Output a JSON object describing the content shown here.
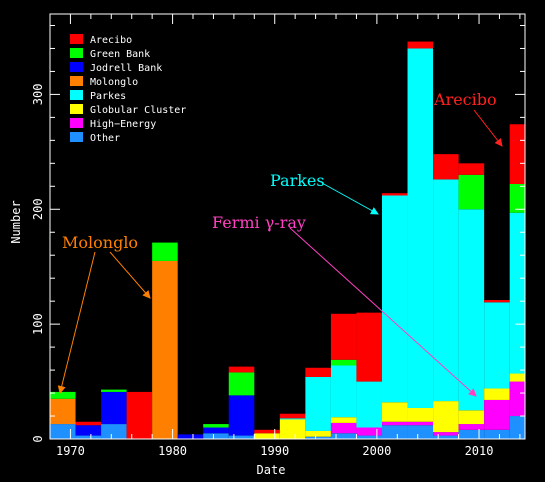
{
  "chart_data": {
    "type": "bar",
    "stacked": true,
    "xlabel": "Date",
    "ylabel": "Number",
    "xlim": [
      1968,
      2014.5
    ],
    "ylim": [
      0,
      370
    ],
    "bin_width": 2.5,
    "bin_starts": [
      1968,
      1970.5,
      1973,
      1975.5,
      1978,
      1980.5,
      1983,
      1985.5,
      1988,
      1990.5,
      1993,
      1995.5,
      1998,
      2000.5,
      2003,
      2005.5,
      2008,
      2010.5,
      2013
    ],
    "x_ticks": [
      {
        "value": 1970,
        "label": "1970"
      },
      {
        "value": 1980,
        "label": "1980"
      },
      {
        "value": 1990,
        "label": "1990"
      },
      {
        "value": 2000,
        "label": "2000"
      },
      {
        "value": 2010,
        "label": "2010"
      }
    ],
    "y_ticks": [
      {
        "value": 0,
        "label": "0"
      },
      {
        "value": 100,
        "label": "100"
      },
      {
        "value": 200,
        "label": "200"
      },
      {
        "value": 300,
        "label": "300"
      }
    ],
    "series": [
      {
        "name": "Other",
        "color": "#1e90ff",
        "values": [
          13,
          3,
          13,
          0,
          0,
          0,
          5,
          3,
          0,
          0,
          2,
          5,
          3,
          12,
          12,
          3,
          8,
          8,
          20
        ]
      },
      {
        "name": "High−Energy",
        "color": "#ff00ff",
        "values": [
          0,
          0,
          0,
          0,
          0,
          0,
          0,
          0,
          0,
          0,
          0,
          9,
          7,
          3,
          3,
          3,
          5,
          26,
          30
        ]
      },
      {
        "name": "Globular Cluster",
        "color": "#ffff00",
        "values": [
          0,
          0,
          0,
          0,
          0,
          0,
          0,
          0,
          5,
          17,
          5,
          5,
          0,
          17,
          12,
          27,
          12,
          10,
          7
        ]
      },
      {
        "name": "Parkes",
        "color": "#00ffff",
        "values": [
          0,
          0,
          0,
          0,
          0,
          0,
          0,
          0,
          0,
          1,
          47,
          45,
          40,
          180,
          313,
          193,
          175,
          75,
          140
        ]
      },
      {
        "name": "Molonglo",
        "color": "#ff8000",
        "values": [
          22,
          0,
          0,
          0,
          155,
          0,
          0,
          0,
          0,
          0,
          0,
          0,
          0,
          0,
          0,
          0,
          0,
          0,
          0
        ]
      },
      {
        "name": "Jodrell Bank",
        "color": "#0000ff",
        "values": [
          0,
          9,
          28,
          0,
          0,
          4,
          5,
          35,
          0,
          0,
          0,
          0,
          0,
          0,
          0,
          0,
          0,
          0,
          0
        ]
      },
      {
        "name": "Green Bank",
        "color": "#00ff00",
        "values": [
          6,
          0,
          2,
          0,
          16,
          0,
          3,
          20,
          0,
          0,
          0,
          5,
          0,
          0,
          0,
          0,
          30,
          0,
          25
        ]
      },
      {
        "name": "Arecibo",
        "color": "#ff0000",
        "values": [
          0,
          3,
          0,
          41,
          0,
          0,
          0,
          5,
          3,
          4,
          8,
          40,
          60,
          2,
          6,
          22,
          10,
          2,
          52
        ]
      }
    ],
    "legend_order": [
      "Arecibo",
      "Green Bank",
      "Jodrell Bank",
      "Molonglo",
      "Parkes",
      "Globular Cluster",
      "High−Energy",
      "Other"
    ],
    "legend_position": "top-left",
    "annotations": [
      {
        "text": "Molonglo",
        "color": "#ff8000"
      },
      {
        "text": "Parkes",
        "color": "#00ffff"
      },
      {
        "text": "Fermi γ-ray",
        "color": "#ff40c0"
      },
      {
        "text": "Arecibo",
        "color": "#ff2020"
      }
    ]
  }
}
